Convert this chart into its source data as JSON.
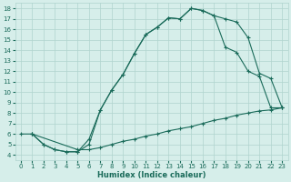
{
  "xlabel": "Humidex (Indice chaleur)",
  "background_color": "#d6eeea",
  "grid_color": "#b0d4ce",
  "line_color": "#1a6b5a",
  "xlim": [
    -0.5,
    23.5
  ],
  "ylim": [
    3.5,
    18.5
  ],
  "xticks": [
    0,
    1,
    2,
    3,
    4,
    5,
    6,
    7,
    8,
    9,
    10,
    11,
    12,
    13,
    14,
    15,
    16,
    17,
    18,
    19,
    20,
    21,
    22,
    23
  ],
  "yticks": [
    4,
    5,
    6,
    7,
    8,
    9,
    10,
    11,
    12,
    13,
    14,
    15,
    16,
    17,
    18
  ],
  "line1_x": [
    0,
    1,
    2,
    3,
    4,
    5,
    6,
    7,
    8,
    9,
    10,
    11,
    12,
    13,
    14,
    15,
    16,
    17,
    18,
    19,
    20,
    21,
    22,
    23
  ],
  "line1_y": [
    6.0,
    6.0,
    5.0,
    4.5,
    4.3,
    4.3,
    5.5,
    8.3,
    10.2,
    11.7,
    13.7,
    15.5,
    16.2,
    17.1,
    17.0,
    18.0,
    17.8,
    17.3,
    17.0,
    16.7,
    15.2,
    11.8,
    11.3,
    8.5
  ],
  "line2_x": [
    1,
    2,
    3,
    4,
    5,
    6,
    7,
    8,
    9,
    10,
    11,
    12,
    13,
    14,
    15,
    16,
    17,
    18,
    19,
    20,
    21,
    22,
    23
  ],
  "line2_y": [
    6.0,
    5.0,
    4.5,
    4.3,
    4.3,
    5.0,
    8.3,
    10.2,
    11.7,
    13.7,
    15.5,
    16.2,
    17.1,
    17.0,
    18.0,
    17.8,
    17.3,
    14.3,
    13.8,
    12.0,
    11.5,
    8.5,
    8.5
  ],
  "line3_x": [
    1,
    5,
    6,
    7,
    8,
    9,
    10,
    11,
    12,
    13,
    14,
    15,
    16,
    17,
    18,
    19,
    20,
    21,
    22,
    23
  ],
  "line3_y": [
    6.0,
    4.5,
    4.5,
    4.7,
    5.0,
    5.3,
    5.5,
    5.8,
    6.0,
    6.3,
    6.5,
    6.7,
    7.0,
    7.3,
    7.5,
    7.8,
    8.0,
    8.2,
    8.3,
    8.5
  ]
}
